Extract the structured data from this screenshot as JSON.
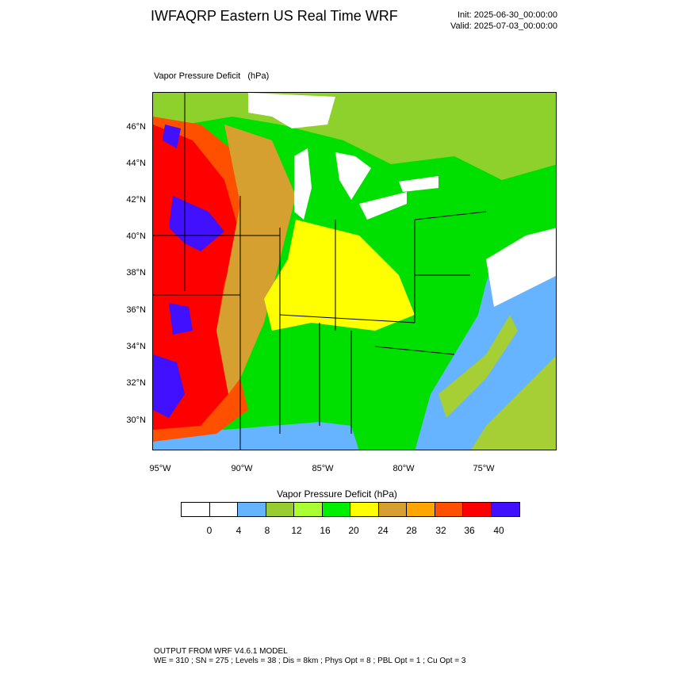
{
  "header": {
    "title": "IWFAQRP Eastern US Real Time WRF",
    "init": "Init: 2025-06-30_00:00:00",
    "valid": "Valid: 2025-07-03_00:00:00"
  },
  "map": {
    "field_label": "Vapor Pressure Deficit   (hPa)",
    "lat_ticks": [
      "46°N",
      "44°N",
      "42°N",
      "40°N",
      "38°N",
      "36°N",
      "34°N",
      "32°N",
      "30°N"
    ],
    "lon_ticks": [
      "95°W",
      "90°W",
      "85°W",
      "80°W",
      "75°W"
    ]
  },
  "colorbar": {
    "title": "Vapor Pressure Deficit  (hPa)",
    "ticks": [
      "0",
      "4",
      "8",
      "12",
      "16",
      "20",
      "24",
      "28",
      "32",
      "36",
      "40"
    ],
    "colors": [
      "#ffffff",
      "#ffffff",
      "#66b3ff",
      "#99cc33",
      "#aaff33",
      "#00ee00",
      "#ffff00",
      "#d6a030",
      "#ffa500",
      "#ff5000",
      "#ff0000",
      "#4010ff"
    ]
  },
  "footer": {
    "line1": "OUTPUT FROM WRF V4.6.1 MODEL",
    "line2": "WE = 310 ; SN = 275 ; Levels = 38 ; Dis = 8km ; Phys Opt = 8 ; PBL Opt = 1 ; Cu Opt = 3"
  }
}
